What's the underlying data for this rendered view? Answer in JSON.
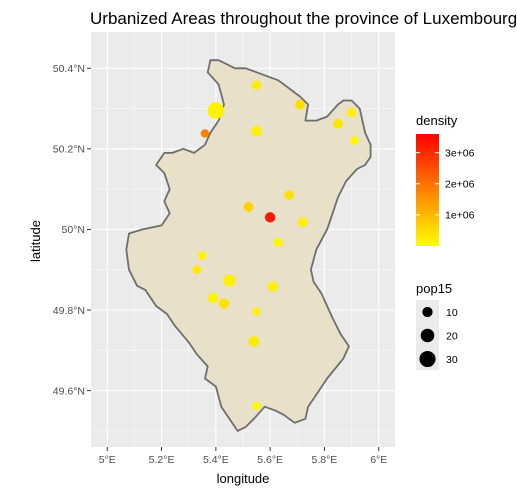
{
  "chart_data": {
    "type": "scatter",
    "title": "Urbanized Areas throughout the province of Luxembourg",
    "xlabel": "longitude",
    "ylabel": "latitude",
    "xlim": [
      4.94,
      6.06
    ],
    "ylim": [
      49.46,
      50.49
    ],
    "x_ticks": [
      {
        "value": 5.0,
        "label": "5°E"
      },
      {
        "value": 5.2,
        "label": "5.2°E"
      },
      {
        "value": 5.4,
        "label": "5.4°E"
      },
      {
        "value": 5.6,
        "label": "5.6°E"
      },
      {
        "value": 5.8,
        "label": "5.8°E"
      },
      {
        "value": 6.0,
        "label": "6°E"
      }
    ],
    "y_ticks": [
      {
        "value": 49.6,
        "label": "49.6°N"
      },
      {
        "value": 49.8,
        "label": "49.8°N"
      },
      {
        "value": 50.0,
        "label": "50°N"
      },
      {
        "value": 50.2,
        "label": "50.2°N"
      },
      {
        "value": 50.4,
        "label": "50.4°N"
      }
    ],
    "grid": true,
    "region_fill": "#e8e0c8",
    "region_border": "#6e6e6e",
    "panel_background": "#ebebeb",
    "color_legend": {
      "title": "density",
      "low_color": "#ffff00",
      "high_color": "#ff0000",
      "min": 0,
      "max": 3600000,
      "ticks": [
        {
          "value": 1000000,
          "label": "1e+06"
        },
        {
          "value": 2000000,
          "label": "2e+06"
        },
        {
          "value": 3000000,
          "label": "3e+06"
        }
      ]
    },
    "size_legend": {
      "title": "pop15",
      "entries": [
        {
          "value": 10,
          "label": "10"
        },
        {
          "value": 20,
          "label": "20"
        },
        {
          "value": 30,
          "label": "30"
        }
      ]
    },
    "outline": [
      [
        5.36,
        50.21
      ],
      [
        5.32,
        50.19
      ],
      [
        5.28,
        50.2
      ],
      [
        5.24,
        50.19
      ],
      [
        5.21,
        50.19
      ],
      [
        5.18,
        50.16
      ],
      [
        5.21,
        50.14
      ],
      [
        5.23,
        50.1
      ],
      [
        5.21,
        50.07
      ],
      [
        5.23,
        50.04
      ],
      [
        5.2,
        50.01
      ],
      [
        5.13,
        50.0
      ],
      [
        5.08,
        49.99
      ],
      [
        5.07,
        49.95
      ],
      [
        5.08,
        49.9
      ],
      [
        5.11,
        49.86
      ],
      [
        5.14,
        49.85
      ],
      [
        5.18,
        49.81
      ],
      [
        5.22,
        49.79
      ],
      [
        5.25,
        49.76
      ],
      [
        5.3,
        49.72
      ],
      [
        5.33,
        49.69
      ],
      [
        5.37,
        49.66
      ],
      [
        5.36,
        49.63
      ],
      [
        5.4,
        49.61
      ],
      [
        5.42,
        49.56
      ],
      [
        5.45,
        49.53
      ],
      [
        5.48,
        49.5
      ],
      [
        5.51,
        49.51
      ],
      [
        5.54,
        49.53
      ],
      [
        5.58,
        49.56
      ],
      [
        5.62,
        49.55
      ],
      [
        5.65,
        49.54
      ],
      [
        5.69,
        49.52
      ],
      [
        5.73,
        49.53
      ],
      [
        5.74,
        49.56
      ],
      [
        5.76,
        49.58
      ],
      [
        5.81,
        49.63
      ],
      [
        5.87,
        49.68
      ],
      [
        5.89,
        49.71
      ],
      [
        5.86,
        49.74
      ],
      [
        5.83,
        49.78
      ],
      [
        5.81,
        49.81
      ],
      [
        5.79,
        49.84
      ],
      [
        5.76,
        49.87
      ],
      [
        5.75,
        49.9
      ],
      [
        5.77,
        49.95
      ],
      [
        5.81,
        50.0
      ],
      [
        5.83,
        50.04
      ],
      [
        5.85,
        50.08
      ],
      [
        5.88,
        50.12
      ],
      [
        5.92,
        50.15
      ],
      [
        5.95,
        50.16
      ],
      [
        5.97,
        50.18
      ],
      [
        5.97,
        50.21
      ],
      [
        5.95,
        50.24
      ],
      [
        5.94,
        50.27
      ],
      [
        5.93,
        50.3
      ],
      [
        5.9,
        50.32
      ],
      [
        5.87,
        50.32
      ],
      [
        5.85,
        50.31
      ],
      [
        5.81,
        50.28
      ],
      [
        5.77,
        50.27
      ],
      [
        5.73,
        50.27
      ],
      [
        5.74,
        50.31
      ],
      [
        5.71,
        50.33
      ],
      [
        5.67,
        50.35
      ],
      [
        5.63,
        50.37
      ],
      [
        5.59,
        50.38
      ],
      [
        5.55,
        50.39
      ],
      [
        5.51,
        50.4
      ],
      [
        5.47,
        50.4
      ],
      [
        5.44,
        50.41
      ],
      [
        5.41,
        50.42
      ],
      [
        5.38,
        50.42
      ],
      [
        5.37,
        50.39
      ],
      [
        5.41,
        50.36
      ],
      [
        5.43,
        50.31
      ],
      [
        5.41,
        50.27
      ],
      [
        5.38,
        50.24
      ],
      [
        5.36,
        50.21
      ]
    ],
    "points": [
      {
        "lon": 5.4,
        "lat": 50.295,
        "pop15": 32,
        "density": 180000
      },
      {
        "lon": 5.36,
        "lat": 50.238,
        "pop15": 6,
        "density": 1800000
      },
      {
        "lon": 5.55,
        "lat": 50.358,
        "pop15": 8,
        "density": 250000
      },
      {
        "lon": 5.71,
        "lat": 50.31,
        "pop15": 9,
        "density": 450000
      },
      {
        "lon": 5.9,
        "lat": 50.29,
        "pop15": 8,
        "density": 200000
      },
      {
        "lon": 5.85,
        "lat": 50.262,
        "pop15": 9,
        "density": 350000
      },
      {
        "lon": 5.91,
        "lat": 50.22,
        "pop15": 6,
        "density": 120000
      },
      {
        "lon": 5.55,
        "lat": 50.244,
        "pop15": 11,
        "density": 180000
      },
      {
        "lon": 5.67,
        "lat": 50.085,
        "pop15": 9,
        "density": 400000
      },
      {
        "lon": 5.52,
        "lat": 50.056,
        "pop15": 9,
        "density": 650000
      },
      {
        "lon": 5.6,
        "lat": 50.03,
        "pop15": 10,
        "density": 3300000
      },
      {
        "lon": 5.72,
        "lat": 50.018,
        "pop15": 9,
        "density": 200000
      },
      {
        "lon": 5.63,
        "lat": 49.968,
        "pop15": 7,
        "density": 150000
      },
      {
        "lon": 5.35,
        "lat": 49.935,
        "pop15": 6,
        "density": 200000
      },
      {
        "lon": 5.33,
        "lat": 49.9,
        "pop15": 6,
        "density": 300000
      },
      {
        "lon": 5.45,
        "lat": 49.873,
        "pop15": 15,
        "density": 200000
      },
      {
        "lon": 5.61,
        "lat": 49.858,
        "pop15": 10,
        "density": 200000
      },
      {
        "lon": 5.39,
        "lat": 49.83,
        "pop15": 10,
        "density": 150000
      },
      {
        "lon": 5.43,
        "lat": 49.816,
        "pop15": 10,
        "density": 400000
      },
      {
        "lon": 5.55,
        "lat": 49.796,
        "pop15": 5,
        "density": 150000
      },
      {
        "lon": 5.54,
        "lat": 49.722,
        "pop15": 11,
        "density": 300000
      },
      {
        "lon": 5.55,
        "lat": 49.562,
        "pop15": 6,
        "density": 100000
      }
    ]
  }
}
